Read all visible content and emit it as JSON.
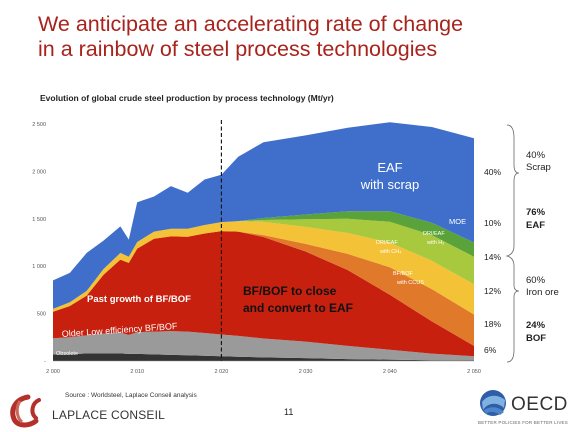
{
  "slide": {
    "title_line1": "We anticipate an accelerating rate of change",
    "title_line2": "in a rainbow of steel process technologies",
    "source": "Source : Worldsteel, Laplace Conseil analysis",
    "page_number": "11",
    "left_logo_text": "LAPLACE CONSEIL",
    "right_logo_text": "OECD",
    "right_logo_tagline": "BETTER POLICIES FOR BETTER LIVES"
  },
  "chart_data": {
    "type": "area",
    "title": "Evolution of global crude steel production by process technology (Mt/yr)",
    "xlim": [
      2000,
      2050
    ],
    "ylim": [
      0,
      2500
    ],
    "x_ticks": [
      2000,
      2010,
      2020,
      2030,
      2040,
      2050
    ],
    "x_tick_labels": [
      "2 000",
      "2 010",
      "2 020",
      "2 030",
      "2 040",
      "2 050"
    ],
    "y_ticks": [
      0,
      500,
      1000,
      1500,
      2000,
      2500
    ],
    "y_tick_labels": [
      "-",
      "500",
      "1 000",
      "1 500",
      "2 000",
      "2 500"
    ],
    "divider_year": 2020,
    "x": [
      2000,
      2002,
      2004,
      2006,
      2008,
      2009,
      2010,
      2012,
      2014,
      2016,
      2018,
      2020,
      2022,
      2025,
      2030,
      2035,
      2040,
      2045,
      2050
    ],
    "series": [
      {
        "name": "Obsolete",
        "color": "#333333",
        "values": [
          70,
          70,
          80,
          80,
          80,
          75,
          75,
          70,
          65,
          60,
          55,
          50,
          45,
          38,
          30,
          20,
          14,
          8,
          5
        ]
      },
      {
        "name": "Older Low efficiency BF/BOF",
        "color": "#9a9a9a",
        "values": [
          170,
          180,
          190,
          210,
          220,
          200,
          230,
          240,
          250,
          250,
          240,
          230,
          220,
          200,
          175,
          140,
          105,
          70,
          45
        ]
      },
      {
        "name": "BF/BOF",
        "color": "#c8200f",
        "values": [
          280,
          330,
          420,
          620,
          770,
          760,
          880,
          980,
          1000,
          1000,
          1050,
          1090,
          1100,
          1070,
          950,
          800,
          580,
          340,
          110
        ]
      },
      {
        "name": "BF/BOF with CCUS",
        "color": "#e07a2a",
        "values": [
          0,
          0,
          0,
          0,
          0,
          0,
          0,
          0,
          0,
          0,
          0,
          0,
          0,
          20,
          80,
          170,
          290,
          340,
          330
        ]
      },
      {
        "name": "DRI/EAF with CH4",
        "color": "#f3c236",
        "values": [
          30,
          40,
          50,
          60,
          70,
          65,
          70,
          75,
          80,
          85,
          90,
          95,
          110,
          140,
          180,
          220,
          260,
          300,
          320
        ]
      },
      {
        "name": "DRI/EAF with H2",
        "color": "#a8c83d",
        "values": [
          0,
          0,
          0,
          0,
          0,
          0,
          0,
          0,
          0,
          0,
          0,
          0,
          0,
          20,
          80,
          150,
          220,
          270,
          290
        ]
      },
      {
        "name": "MOE",
        "color": "#5aa33a",
        "values": [
          0,
          0,
          0,
          0,
          0,
          0,
          0,
          0,
          0,
          0,
          0,
          0,
          0,
          20,
          50,
          80,
          110,
          130,
          150
        ]
      },
      {
        "name": "EAF with scrap",
        "color": "#3f6fcb",
        "values": [
          300,
          310,
          400,
          300,
          280,
          180,
          420,
          370,
          450,
          380,
          480,
          500,
          680,
          800,
          835,
          880,
          940,
          1010,
          1100
        ]
      }
    ],
    "annotations": {
      "obsolete": "Obsolete",
      "older": "Older Low efficiency BF/BOF",
      "past_growth": "Past growth of BF/BOF",
      "close_line1": "BF/BOF to close",
      "close_line2": "and convert to EAF",
      "eaf_line1": "EAF",
      "eaf_line2": "with scrap",
      "moe": "MOE",
      "dri_h2_line1": "DRI/EAF",
      "dri_h2_line2": "with H₂",
      "dri_ch4_line1": "DRI/EAF",
      "dri_ch4_line2": "with CH₄",
      "ccus_line1": "BF/BOF",
      "ccus_line2": "with CCUS"
    },
    "share_labels": [
      {
        "text": "40%",
        "series": "EAF with scrap"
      },
      {
        "text": "10%",
        "series": "MOE + DRI/EAF with H2"
      },
      {
        "text": "14%",
        "series": "DRI/EAF with CH4"
      },
      {
        "text": "12%",
        "series": "BF/BOF with CCUS"
      },
      {
        "text": "18%",
        "series": "BF/BOF"
      },
      {
        "text": "6%",
        "series": "Older Low efficiency BF/BOF"
      }
    ],
    "group_labels": [
      {
        "line1": "40%",
        "line2": "Scrap",
        "bold": false
      },
      {
        "line1": "76%",
        "line2": "EAF",
        "bold": true
      },
      {
        "line1": "60%",
        "line2": "Iron ore",
        "bold": false
      },
      {
        "line1": "24%",
        "line2": "BOF",
        "bold": true
      }
    ]
  }
}
